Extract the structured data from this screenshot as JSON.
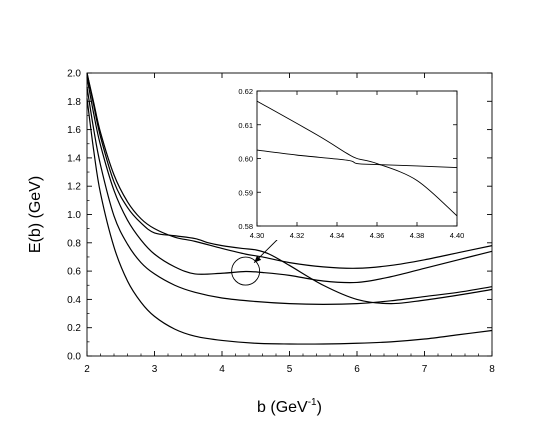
{
  "chart_data": [
    {
      "type": "line",
      "xlabel": "b (GeV",
      "xlabel_sup": "-1",
      "xlabel_close": ")",
      "ylabel": "E(b) (GeV)",
      "xlim": [
        2,
        8
      ],
      "ylim": [
        0,
        2
      ],
      "xticks": [
        "2",
        "3",
        "4",
        "5",
        "6",
        "7",
        "8"
      ],
      "yticks": [
        "0.0",
        "0.2",
        "0.4",
        "0.6",
        "0.8",
        "1.0",
        "1.2",
        "1.4",
        "1.6",
        "1.8",
        "2.0"
      ],
      "grid": false,
      "legend": "none",
      "annotation": "circle at (4.35, 0.6) with arrow to inset",
      "series": [
        {
          "x": [
            2.0,
            2.1,
            2.2,
            2.4,
            2.6,
            2.8,
            3.0,
            3.3,
            3.6,
            4.0,
            4.5,
            5.0,
            5.5,
            6.0,
            6.5,
            7.0,
            7.5,
            8.0
          ],
          "values": [
            1.82,
            1.45,
            1.15,
            0.77,
            0.53,
            0.38,
            0.28,
            0.19,
            0.14,
            0.11,
            0.09,
            0.085,
            0.085,
            0.09,
            0.1,
            0.12,
            0.15,
            0.18
          ]
        },
        {
          "x": [
            2.0,
            2.1,
            2.2,
            2.4,
            2.6,
            2.8,
            3.0,
            3.3,
            3.6,
            4.0,
            4.35,
            4.6,
            5.0,
            5.5,
            6.0,
            6.5,
            7.0,
            7.5,
            8.0
          ],
          "values": [
            1.97,
            1.71,
            1.49,
            1.17,
            0.96,
            0.82,
            0.72,
            0.63,
            0.58,
            0.585,
            0.597,
            0.59,
            0.57,
            0.53,
            0.52,
            0.56,
            0.62,
            0.68,
            0.74
          ]
        },
        {
          "x": [
            2.0,
            2.1,
            2.2,
            2.4,
            2.6,
            2.8,
            3.0,
            3.3,
            3.6,
            4.0,
            4.35,
            4.6,
            5.0,
            5.5,
            6.0,
            6.5,
            7.0,
            7.5,
            8.0
          ],
          "values": [
            2.0,
            1.79,
            1.58,
            1.28,
            1.09,
            0.97,
            0.9,
            0.84,
            0.81,
            0.76,
            0.72,
            0.7,
            0.66,
            0.63,
            0.62,
            0.64,
            0.68,
            0.73,
            0.78
          ]
        },
        {
          "x": [
            2.0,
            2.1,
            2.2,
            2.4,
            2.6,
            2.8,
            3.0,
            3.3,
            3.6,
            4.0,
            4.5,
            5.0,
            5.5,
            6.0,
            6.5,
            7.0,
            7.5,
            8.0
          ],
          "values": [
            1.9,
            1.6,
            1.35,
            0.99,
            0.79,
            0.66,
            0.58,
            0.5,
            0.45,
            0.41,
            0.385,
            0.37,
            0.365,
            0.37,
            0.39,
            0.42,
            0.45,
            0.49
          ]
        },
        {
          "x": [
            2.0,
            2.1,
            2.2,
            2.4,
            2.6,
            2.8,
            3.0,
            3.3,
            3.6,
            3.8,
            4.0,
            4.3,
            4.5,
            4.7,
            5.0,
            5.5,
            6.0,
            6.5,
            7.0,
            7.5,
            8.0
          ],
          "values": [
            2.0,
            1.77,
            1.55,
            1.23,
            1.05,
            0.94,
            0.87,
            0.85,
            0.83,
            0.8,
            0.78,
            0.76,
            0.75,
            0.72,
            0.64,
            0.5,
            0.4,
            0.37,
            0.395,
            0.43,
            0.47
          ]
        }
      ]
    },
    {
      "type": "line",
      "role": "inset",
      "xlim": [
        4.3,
        4.4
      ],
      "ylim": [
        0.58,
        0.62
      ],
      "xticks": [
        "4.30",
        "4.32",
        "4.34",
        "4.36",
        "4.38",
        "4.40"
      ],
      "yticks": [
        "0.58",
        "0.59",
        "0.60",
        "0.61",
        "0.62"
      ],
      "grid": false,
      "series": [
        {
          "x": [
            4.3,
            4.33,
            4.345,
            4.35,
            4.36,
            4.38,
            4.4
          ],
          "values": [
            0.617,
            0.607,
            0.6015,
            0.6,
            0.5985,
            0.5935,
            0.583
          ]
        },
        {
          "x": [
            4.3,
            4.32,
            4.345,
            4.35,
            4.36,
            4.38,
            4.4
          ],
          "values": [
            0.6025,
            0.601,
            0.5995,
            0.5985,
            0.5982,
            0.5978,
            0.5973
          ]
        }
      ]
    }
  ]
}
